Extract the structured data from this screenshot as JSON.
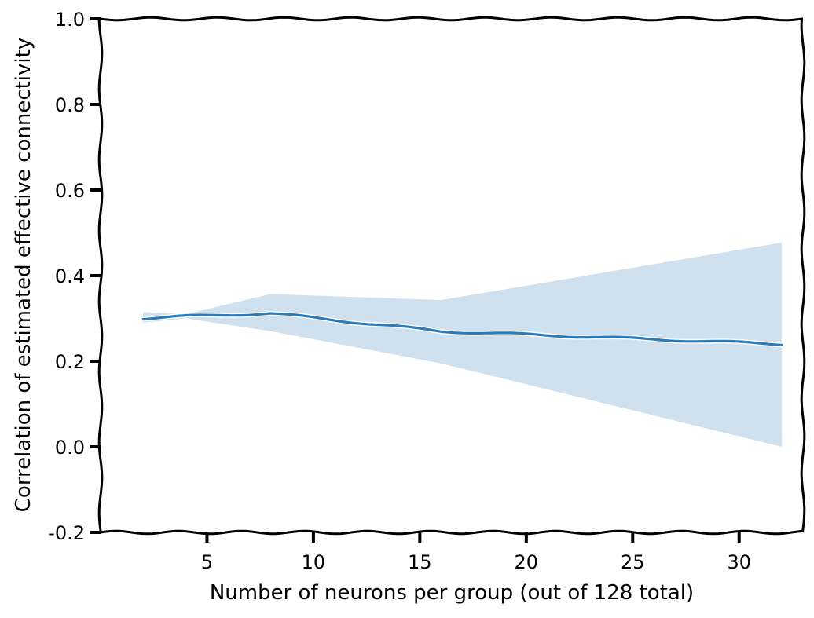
{
  "chart_data": {
    "type": "line",
    "title": "",
    "xlabel": "Number of neurons per group (out of 128 total)",
    "ylabel": "Correlation of estimated effective connectivity",
    "xlim": [
      0,
      33
    ],
    "ylim": [
      -0.2,
      1.0
    ],
    "x_ticks": [
      5,
      10,
      15,
      20,
      25,
      30
    ],
    "x_tick_labels": [
      "5",
      "10",
      "15",
      "20",
      "25",
      "30"
    ],
    "y_ticks": [
      -0.2,
      0.0,
      0.2,
      0.4,
      0.6,
      0.8,
      1.0
    ],
    "y_tick_labels": [
      "-0.2",
      "0.0",
      "0.2",
      "0.4",
      "0.6",
      "0.8",
      "1.0"
    ],
    "grid": false,
    "line_color": "#2b7bba",
    "band_color": "#cfe0ee",
    "series": [
      {
        "x": [
          2,
          4,
          8,
          16,
          32
        ],
        "y": [
          0.3,
          0.305,
          0.312,
          0.27,
          0.24
        ],
        "lower": [
          0.29,
          0.3,
          0.27,
          0.195,
          0.0
        ],
        "upper": [
          0.315,
          0.31,
          0.357,
          0.343,
          0.477
        ]
      }
    ]
  }
}
